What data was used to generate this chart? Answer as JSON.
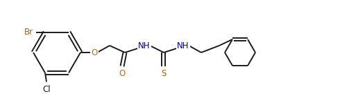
{
  "bg_color": "#ffffff",
  "bond_color": "#1a1a1a",
  "atom_colors": {
    "Br": "#8b6914",
    "Cl": "#1a1a1a",
    "O": "#cc6600",
    "N": "#00008b",
    "S": "#8b6914",
    "C": "#1a1a1a"
  },
  "line_width": 1.4,
  "font_size": 8.5,
  "fig_width": 5.03,
  "fig_height": 1.52,
  "dpi": 100
}
